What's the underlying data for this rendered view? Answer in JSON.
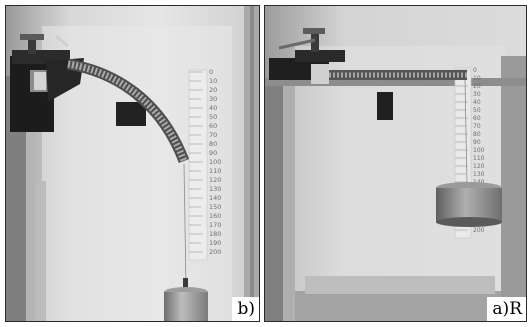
{
  "figure": {
    "panels": [
      {
        "id": "b",
        "label": "b)",
        "scale_ticks": [
          "0",
          "10",
          "20",
          "30",
          "40",
          "50",
          "60",
          "70",
          "80",
          "90",
          "100",
          "110",
          "120",
          "130",
          "140",
          "150",
          "160",
          "170",
          "180",
          "190",
          "200"
        ]
      },
      {
        "id": "a",
        "label": "a)R",
        "scale_ticks": [
          "0",
          "10",
          "20",
          "30",
          "40",
          "50",
          "60",
          "70",
          "80",
          "90",
          "100",
          "110",
          "120",
          "130",
          "140",
          "150",
          "160",
          "170",
          "180",
          "190",
          "200"
        ]
      }
    ]
  }
}
